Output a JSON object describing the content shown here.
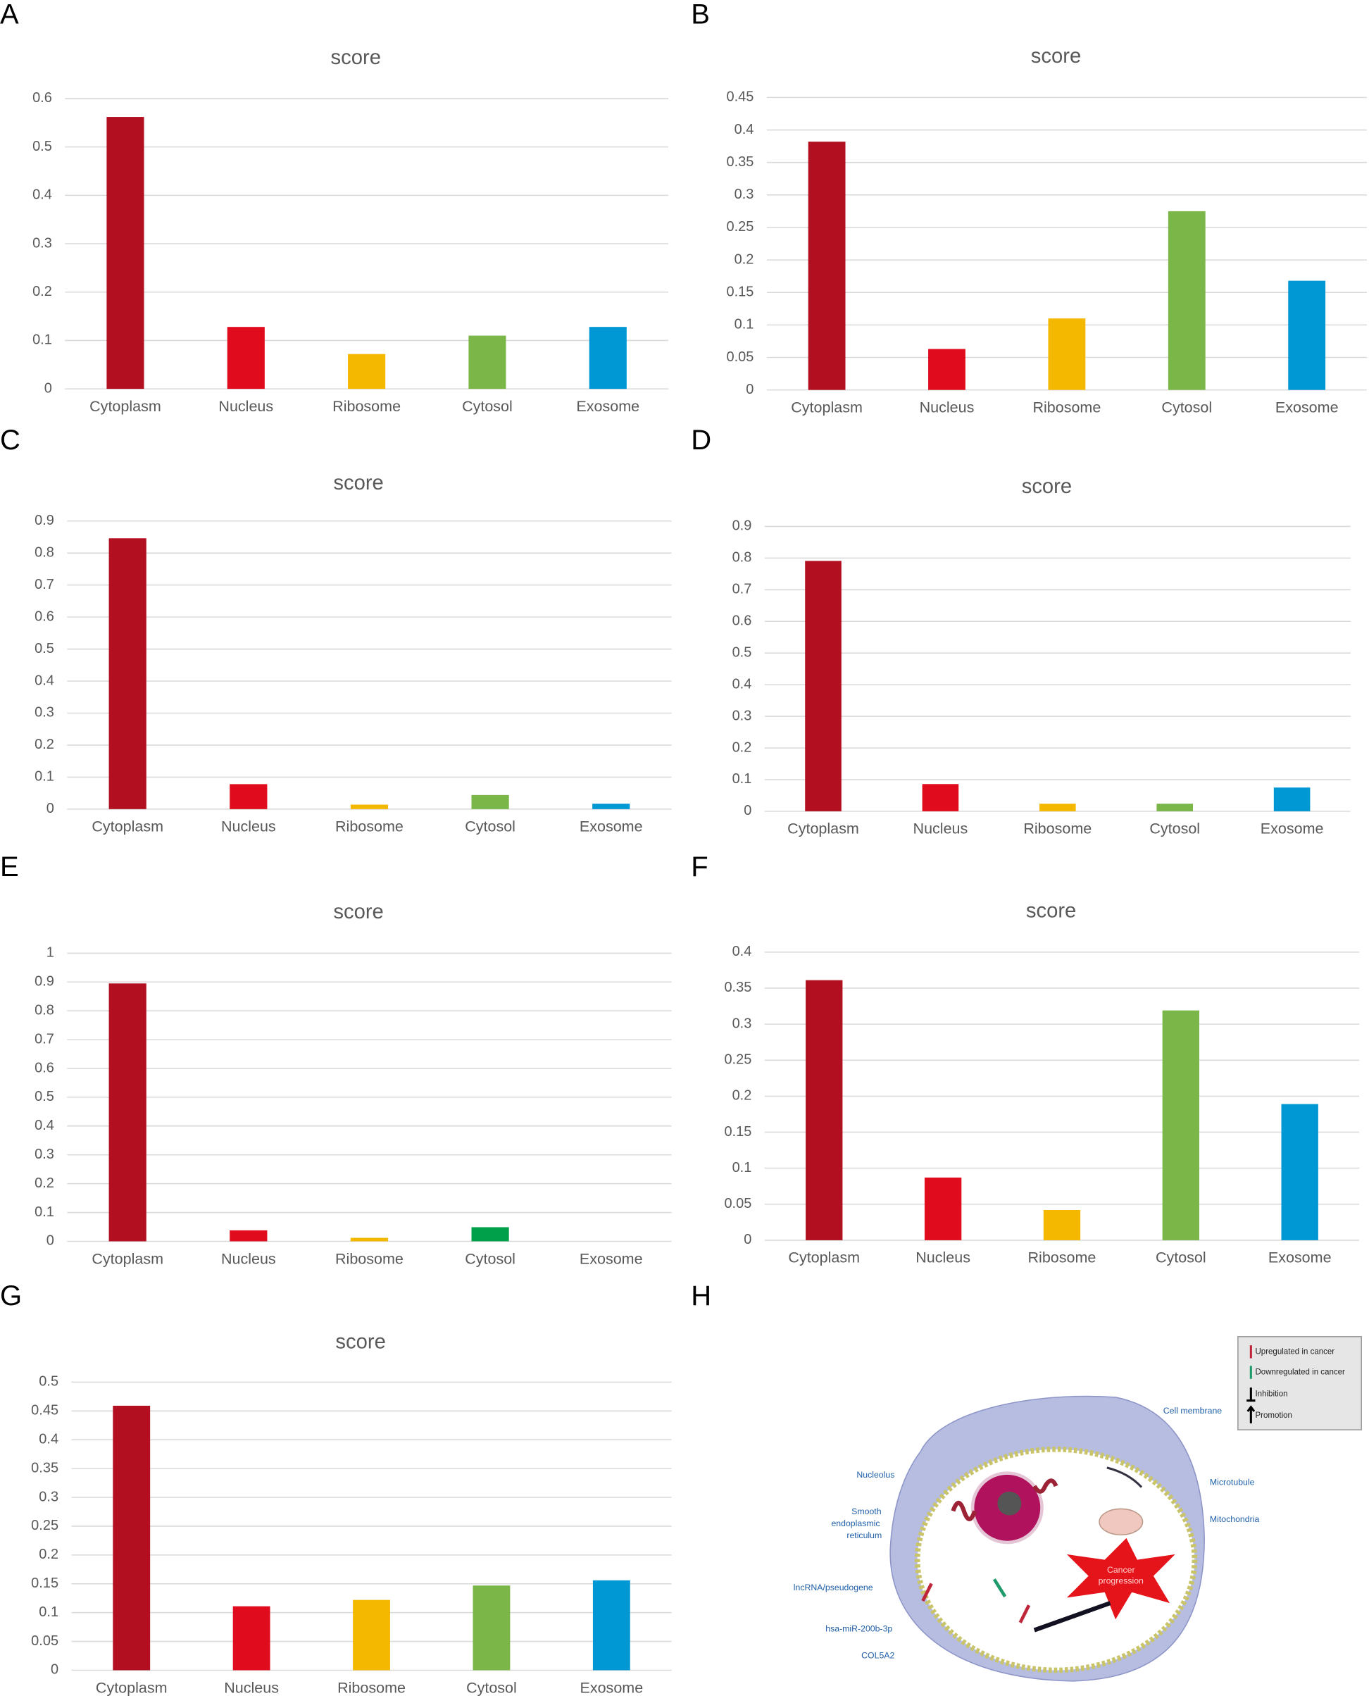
{
  "chart_data": [
    {
      "type": "bar",
      "panel": "A",
      "title": "score",
      "categories": [
        "Cytoplasm",
        "Nucleus",
        "Ribosome",
        "Cytosol",
        "Exosome"
      ],
      "values": [
        0.562,
        0.128,
        0.072,
        0.11,
        0.128
      ],
      "colors": [
        "#b20f20",
        "#e00b1c",
        "#f5b800",
        "#7ab648",
        "#0098d4"
      ],
      "ylim": [
        0,
        0.6
      ],
      "yticks": [
        0,
        0.1,
        0.2,
        0.3,
        0.4,
        0.5,
        0.6
      ],
      "grid": true
    },
    {
      "type": "bar",
      "panel": "B",
      "title": "score",
      "categories": [
        "Cytoplasm",
        "Nucleus",
        "Ribosome",
        "Cytosol",
        "Exosome"
      ],
      "values": [
        0.382,
        0.063,
        0.11,
        0.275,
        0.168
      ],
      "colors": [
        "#b20f20",
        "#e00b1c",
        "#f5b800",
        "#7ab648",
        "#0098d4"
      ],
      "ylim": [
        0,
        0.45
      ],
      "yticks": [
        0,
        0.05,
        0.1,
        0.15,
        0.2,
        0.25,
        0.3,
        0.35,
        0.4,
        0.45
      ],
      "grid": true
    },
    {
      "type": "bar",
      "panel": "C",
      "title": "score",
      "categories": [
        "Cytoplasm",
        "Nucleus",
        "Ribosome",
        "Cytosol",
        "Exosome"
      ],
      "values": [
        0.846,
        0.078,
        0.014,
        0.044,
        0.017
      ],
      "colors": [
        "#b20f20",
        "#e00b1c",
        "#f5b800",
        "#7ab648",
        "#0098d4"
      ],
      "ylim": [
        0,
        0.9
      ],
      "yticks": [
        0,
        0.1,
        0.2,
        0.3,
        0.4,
        0.5,
        0.6,
        0.7,
        0.8,
        0.9
      ],
      "grid": true
    },
    {
      "type": "bar",
      "panel": "D",
      "title": "score",
      "categories": [
        "Cytoplasm",
        "Nucleus",
        "Ribosome",
        "Cytosol",
        "Exosome"
      ],
      "values": [
        0.791,
        0.086,
        0.024,
        0.024,
        0.075
      ],
      "colors": [
        "#b20f20",
        "#e00b1c",
        "#f5b800",
        "#7ab648",
        "#0098d4"
      ],
      "ylim": [
        0,
        0.9
      ],
      "yticks": [
        0,
        0.1,
        0.2,
        0.3,
        0.4,
        0.5,
        0.6,
        0.7,
        0.8,
        0.9
      ],
      "grid": true
    },
    {
      "type": "bar",
      "panel": "E",
      "title": "score",
      "categories": [
        "Cytoplasm",
        "Nucleus",
        "Ribosome",
        "Cytosol",
        "Exosome"
      ],
      "values": [
        0.895,
        0.038,
        0.012,
        0.049,
        0
      ],
      "colors": [
        "#b20f20",
        "#e00b1c",
        "#f5b800",
        "#00a04a",
        "#0098d4"
      ],
      "ylim": [
        0,
        1
      ],
      "yticks": [
        0,
        0.1,
        0.2,
        0.3,
        0.4,
        0.5,
        0.6,
        0.7,
        0.8,
        0.9,
        1
      ],
      "grid": true
    },
    {
      "type": "bar",
      "panel": "F",
      "title": "score",
      "categories": [
        "Cytoplasm",
        "Nucleus",
        "Ribosome",
        "Cytosol",
        "Exosome"
      ],
      "values": [
        0.361,
        0.087,
        0.042,
        0.319,
        0.189
      ],
      "colors": [
        "#b20f20",
        "#e00b1c",
        "#f5b800",
        "#7ab648",
        "#0098d4"
      ],
      "ylim": [
        0,
        0.4
      ],
      "yticks": [
        0,
        0.05,
        0.1,
        0.15,
        0.2,
        0.25,
        0.3,
        0.35,
        0.4
      ],
      "grid": true
    },
    {
      "type": "bar",
      "panel": "G",
      "title": "score",
      "categories": [
        "Cytoplasm",
        "Nucleus",
        "Ribosome",
        "Cytosol",
        "Exosome"
      ],
      "values": [
        0.459,
        0.111,
        0.122,
        0.147,
        0.156
      ],
      "colors": [
        "#b20f20",
        "#e00b1c",
        "#f5b800",
        "#7ab648",
        "#0098d4"
      ],
      "ylim": [
        0,
        0.5
      ],
      "yticks": [
        0,
        0.05,
        0.1,
        0.15,
        0.2,
        0.25,
        0.3,
        0.35,
        0.4,
        0.45,
        0.5
      ],
      "grid": true
    }
  ],
  "diagram": {
    "panel": "H",
    "legend": [
      "Upregulated in cancer",
      "Downregulated in cancer",
      "Inhibition",
      "Promotion"
    ],
    "labels": {
      "membrane": "Cell membrane",
      "nucleolus": "Nucleolus",
      "ser": [
        "Smooth",
        "endoplasmic",
        "reticulum"
      ],
      "microtubule": "Microtubule",
      "mitochondria": "Mitochondria",
      "lncrna": "lncRNA/pseudogene",
      "mirna": "hsa-miR-200b-3p",
      "gene": "COL5A2",
      "cancer": [
        "Cancer",
        "progression"
      ]
    }
  }
}
